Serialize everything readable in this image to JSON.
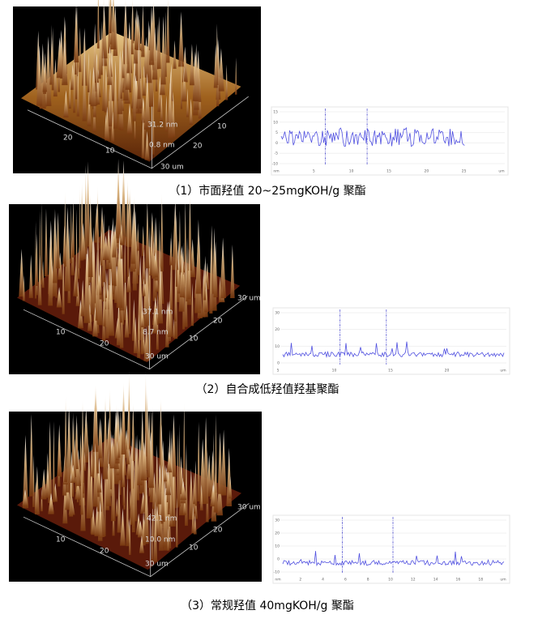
{
  "figures": [
    {
      "caption": "（1）市面羟值 20~25mgKOH/g 聚酯",
      "afm_labels": [
        "31.2 nm",
        "0.8 nm",
        "20",
        "10",
        "30 um",
        "20",
        "10"
      ],
      "profile_yticks": [
        "15",
        "10",
        "5",
        "0",
        "-5",
        "-10"
      ],
      "profile_xticks": [
        "nm",
        "5",
        "10",
        "15",
        "20",
        "25",
        "um"
      ]
    },
    {
      "caption": "（2）自合成低羟值羟基聚酯",
      "afm_labels": [
        "37.1 nm",
        "8.7 nm",
        "30 um",
        "20",
        "10",
        "10",
        "20",
        "30 um"
      ],
      "profile_yticks": [
        "30",
        "20",
        "10",
        "0"
      ],
      "profile_xticks": [
        "5",
        "10",
        "15",
        "20",
        "um"
      ]
    },
    {
      "caption": "（3）常规羟值 40mgKOH/g 聚酯",
      "afm_labels": [
        "42.1 nm",
        "10.0 nm",
        "30 um",
        "20",
        "10",
        "10",
        "20",
        "30 um"
      ],
      "profile_yticks": [
        "30",
        "20",
        "10",
        "0",
        "-10"
      ],
      "profile_xticks": [
        "nm",
        "2",
        "4",
        "6",
        "8",
        "10",
        "12",
        "14",
        "16",
        "18",
        "um"
      ]
    }
  ]
}
